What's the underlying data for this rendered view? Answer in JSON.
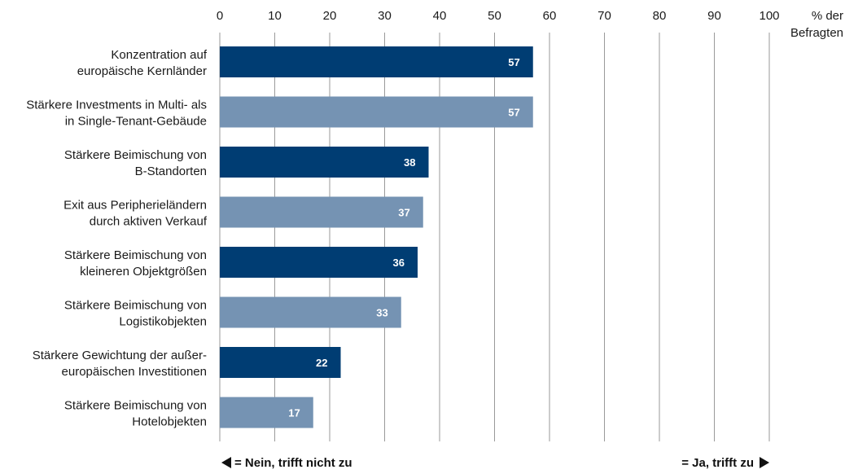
{
  "chart_data": {
    "type": "bar",
    "orientation": "horizontal",
    "categories": [
      [
        "Konzentration auf",
        "europäische Kernländer"
      ],
      [
        "Stärkere Investments in Multi- als",
        "in Single-Tenant-Gebäude"
      ],
      [
        "Stärkere Beimischung von",
        "B-Standorten"
      ],
      [
        "Exit aus Peripherieländern",
        "durch aktiven Verkauf"
      ],
      [
        "Stärkere Beimischung von",
        "kleineren Objektgrößen"
      ],
      [
        "Stärkere Beimischung von",
        "Logistikobjekten"
      ],
      [
        "Stärkere Gewichtung der außer-",
        "europäischen Investitionen"
      ],
      [
        "Stärkere Beimischung von",
        "Hotelobjekten"
      ]
    ],
    "values": [
      57,
      57,
      38,
      37,
      36,
      33,
      22,
      17
    ],
    "value_labels": [
      "57",
      "57",
      "38",
      "37",
      "36",
      "33",
      "22",
      "17"
    ],
    "bar_colors": [
      "#003d73",
      "#7593b3",
      "#003d73",
      "#7593b3",
      "#003d73",
      "#7593b3",
      "#003d73",
      "#7593b3"
    ],
    "xlim": [
      0,
      100
    ],
    "ticks": [
      "0",
      "10",
      "20",
      "30",
      "40",
      "50",
      "60",
      "70",
      "80",
      "90",
      "100"
    ],
    "unit_label": [
      "% der",
      "Befragten"
    ],
    "grid": true,
    "axis_position": "top",
    "footer": {
      "left": "= Nein, trifft nicht zu",
      "right": "= Ja, trifft zu"
    }
  }
}
